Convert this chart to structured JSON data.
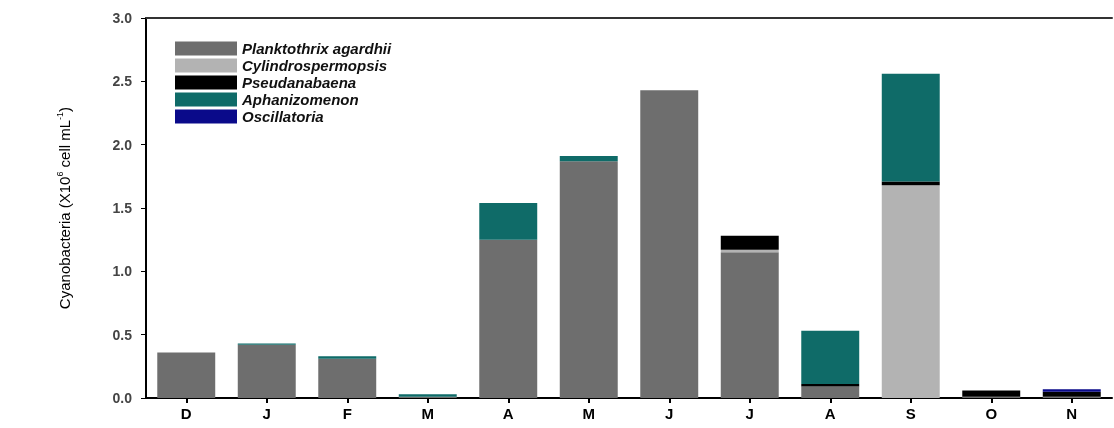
{
  "chart_data": {
    "type": "bar",
    "stacked": true,
    "ylabel": "Cyanobacteria (X10$^{6}$ cell mL$^{-1}$)",
    "categories": [
      "D",
      "J",
      "F",
      "M",
      "A",
      "M",
      "J",
      "J",
      "A",
      "S",
      "O",
      "N"
    ],
    "series": [
      {
        "name": "Planktothrix agardhii",
        "color": "#6e6e6e",
        "values": [
          0.36,
          0.42,
          0.31,
          0.01,
          1.25,
          1.87,
          2.43,
          1.15,
          0.09,
          0,
          0.01,
          0.01
        ]
      },
      {
        "name": "Cylindrospermopsis",
        "color": "#b3b3b3",
        "values": [
          0,
          0,
          0,
          0,
          0,
          0,
          0,
          0.02,
          0,
          1.68,
          0,
          0
        ]
      },
      {
        "name": "Pseudanabaena",
        "color": "#000000",
        "values": [
          0,
          0,
          0,
          0,
          0,
          0,
          0,
          0.11,
          0.02,
          0.03,
          0.05,
          0.04
        ]
      },
      {
        "name": "Aphanizomenon",
        "color": "#0f6b68",
        "values": [
          0,
          0.01,
          0.02,
          0.02,
          0.29,
          0.04,
          0,
          0,
          0.42,
          0.85,
          0,
          0
        ]
      },
      {
        "name": "Oscillatoria",
        "color": "#0a0a8a",
        "values": [
          0,
          0,
          0,
          0,
          0,
          0,
          0,
          0,
          0,
          0,
          0,
          0.02
        ]
      }
    ],
    "ylim": [
      0,
      3.0
    ],
    "yticks": [
      {
        "value": 0,
        "label": "0.0"
      },
      0.5,
      {
        "value": 1,
        "label": "1.0"
      },
      1.5,
      {
        "value": 2,
        "label": "2.0"
      },
      2.5,
      {
        "value": 3,
        "label": "3.0"
      }
    ],
    "grid": false,
    "legend": "top left"
  }
}
